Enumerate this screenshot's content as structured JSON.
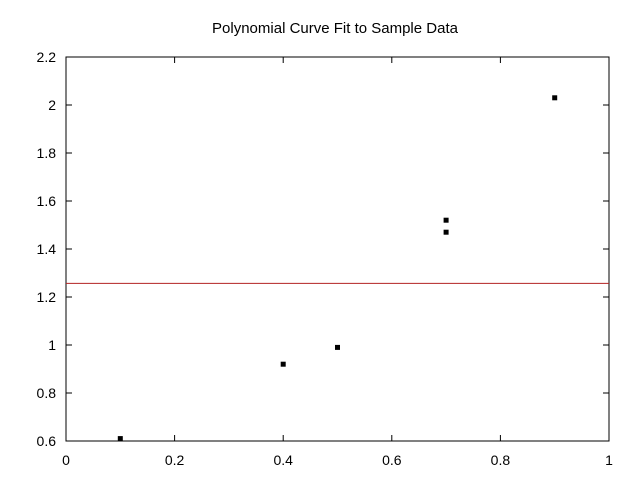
{
  "chart_data": {
    "type": "scatter",
    "title": "Polynomial Curve Fit to Sample Data",
    "xlabel": "",
    "ylabel": "",
    "xlim": [
      0,
      1
    ],
    "ylim": [
      0.6,
      2.2
    ],
    "xticks": [
      "0",
      "0.2",
      "0.4",
      "0.6",
      "0.8",
      "1"
    ],
    "yticks": [
      "0.6",
      "0.8",
      "1",
      "1.2",
      "1.4",
      "1.6",
      "1.8",
      "2",
      "2.2"
    ],
    "grid": false,
    "legend": "none",
    "points": [
      {
        "x": 0.1,
        "y": 0.61
      },
      {
        "x": 0.4,
        "y": 0.92
      },
      {
        "x": 0.5,
        "y": 0.99
      },
      {
        "x": 0.7,
        "y": 1.47
      },
      {
        "x": 0.7,
        "y": 1.52
      },
      {
        "x": 0.9,
        "y": 2.03
      }
    ],
    "fit_line": {
      "y": 1.257,
      "color": "#b22222"
    },
    "point_color": "#000000"
  }
}
